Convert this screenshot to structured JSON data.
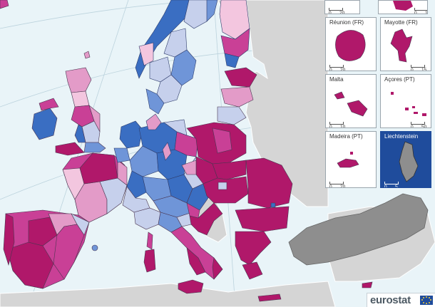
{
  "colors": {
    "sea": "#e9f4f8",
    "non_eu_land": "#d5d5d5",
    "turkey_gray": "#8e8e8e",
    "class_dark_magenta": "#b0186a",
    "class_magenta": "#c94096",
    "class_pink": "#e39bc8",
    "class_light_pink": "#f3c6df",
    "class_pale_blue": "#c6d0ec",
    "class_blue": "#6f95d8",
    "class_dark_blue": "#3a6ec2",
    "border": "#4a3550"
  },
  "insets": [
    {
      "name": "Réunion (FR)",
      "scale_start": "0",
      "scale_end": "20"
    },
    {
      "name": "Mayotte (FR)",
      "scale_start": "0",
      "scale_end": "15"
    },
    {
      "name": "Malta",
      "scale_start": "0",
      "scale_end": "10"
    },
    {
      "name": "Açores (PT)",
      "scale_start": "0",
      "scale_end": "50"
    },
    {
      "name": "Madeira (PT)",
      "scale_start": "0",
      "scale_end": "20"
    },
    {
      "name": "Liechtenstein",
      "scale_start": "0",
      "scale_end": "5"
    }
  ],
  "top_insets": [
    {
      "scale_start": "0",
      "scale_end": "20"
    },
    {
      "scale_start": "0",
      "scale_end": "100"
    }
  ],
  "logo": {
    "text": "eurostat",
    "flag_icon": "eu-flag-icon"
  }
}
